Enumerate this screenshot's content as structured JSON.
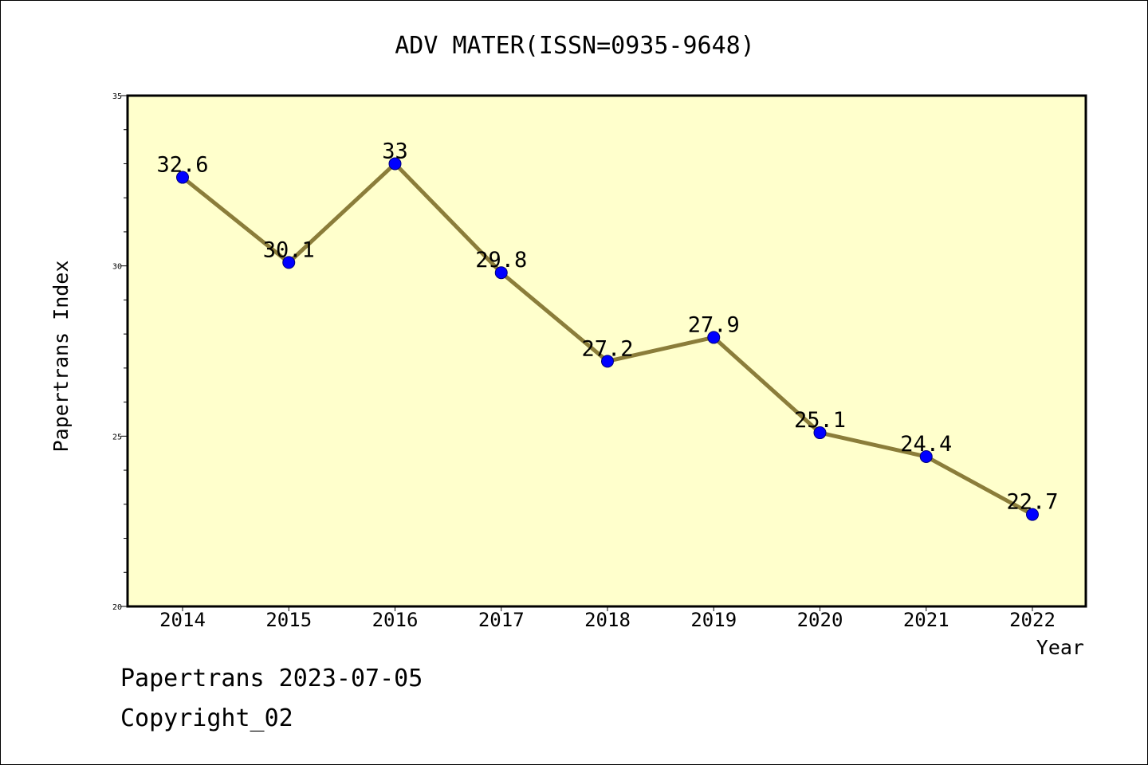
{
  "chart_data": {
    "type": "line",
    "title": "ADV MATER(ISSN=0935-9648)",
    "xlabel": "Year",
    "ylabel": "Papertrans Index",
    "categories": [
      "2014",
      "2015",
      "2016",
      "2017",
      "2018",
      "2019",
      "2020",
      "2021",
      "2022"
    ],
    "series": [
      {
        "values": [
          32.6,
          30.1,
          33,
          29.8,
          27.2,
          27.9,
          25.1,
          24.4,
          22.7
        ],
        "data_labels": [
          "32.6",
          "30.1",
          "33",
          "29.8",
          "27.2",
          "27.9",
          "25.1",
          "24.4",
          "22.7"
        ]
      }
    ],
    "ylim": [
      20,
      35
    ],
    "yticks": [
      "20",
      "25",
      "30",
      "35"
    ],
    "y_minor_step": 1,
    "grid": false,
    "legend": "none",
    "colors": {
      "plot_background": "#ffffcc",
      "line": "#8b7d3a",
      "marker": "#0000ff",
      "axis": "#000000"
    }
  },
  "footer": {
    "line1": "Papertrans 2023-07-05",
    "line2": "Copyright_02"
  }
}
